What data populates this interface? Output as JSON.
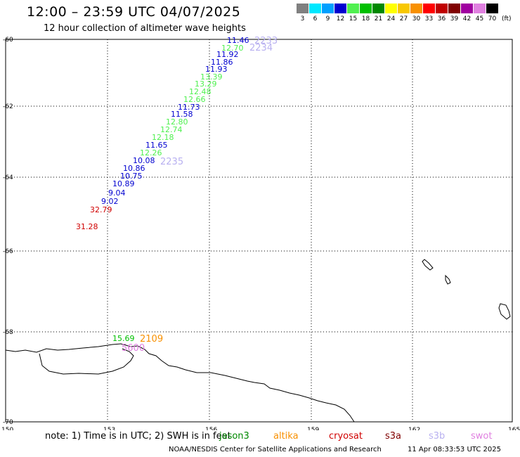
{
  "header": {
    "title": "12:00 – 23:59 UTC 04/07/2025",
    "subtitle": "12 hour collection of altimeter wave heights"
  },
  "colorbar": {
    "units": "(ft)",
    "bins": [
      {
        "label": "3",
        "color": "#808080"
      },
      {
        "label": "6",
        "color": "#00e8ff"
      },
      {
        "label": "9",
        "color": "#00a0ff"
      },
      {
        "label": "12",
        "color": "#0000d0"
      },
      {
        "label": "15",
        "color": "#50f050"
      },
      {
        "label": "18",
        "color": "#00c000"
      },
      {
        "label": "21",
        "color": "#008800"
      },
      {
        "label": "24",
        "color": "#ffff00"
      },
      {
        "label": "27",
        "color": "#f8c800"
      },
      {
        "label": "30",
        "color": "#f89000"
      },
      {
        "label": "33",
        "color": "#ff0000"
      },
      {
        "label": "36",
        "color": "#c00000"
      },
      {
        "label": "39",
        "color": "#800000"
      },
      {
        "label": "42",
        "color": "#a000a0"
      },
      {
        "label": "45",
        "color": "#e080e0"
      },
      {
        "label": "70",
        "color": "#000000"
      }
    ]
  },
  "map": {
    "lon_range": [
      150,
      165
    ],
    "lat_range": [
      -60,
      -70
    ],
    "lon_ticks": [
      "150",
      "153",
      "156",
      "159",
      "162",
      "165"
    ],
    "lat_ticks": [
      "-60",
      "-62",
      "-64",
      "-66",
      "-68",
      "-70"
    ],
    "track_labels": [
      "2233",
      "2234",
      "2235",
      "2109",
      "5600"
    ],
    "observations": [
      {
        "value": "11.46",
        "color": "#0000d0"
      },
      {
        "value": "12.70",
        "color": "#50f050"
      },
      {
        "value": "11.92",
        "color": "#0000d0"
      },
      {
        "value": "11.86",
        "color": "#0000d0"
      },
      {
        "value": "11.93",
        "color": "#0000d0"
      },
      {
        "value": "13.39",
        "color": "#50f050"
      },
      {
        "value": "13.29",
        "color": "#50f050"
      },
      {
        "value": "12.48",
        "color": "#50f050"
      },
      {
        "value": "12.66",
        "color": "#50f050"
      },
      {
        "value": "11.73",
        "color": "#0000d0"
      },
      {
        "value": "11.58",
        "color": "#0000d0"
      },
      {
        "value": "12.80",
        "color": "#50f050"
      },
      {
        "value": "12.74",
        "color": "#50f050"
      },
      {
        "value": "12.18",
        "color": "#50f050"
      },
      {
        "value": "11.65",
        "color": "#0000d0"
      },
      {
        "value": "12.26",
        "color": "#50f050"
      },
      {
        "value": "10.08",
        "color": "#0000d0"
      },
      {
        "value": "10.86",
        "color": "#0000d0"
      },
      {
        "value": "10.75",
        "color": "#0000d0"
      },
      {
        "value": "10.89",
        "color": "#0000d0"
      },
      {
        "value": "9.04",
        "color": "#0000d0"
      },
      {
        "value": "9.02",
        "color": "#0000d0"
      },
      {
        "value": "32.79",
        "color": "#d00000"
      },
      {
        "value": "31.28",
        "color": "#d00000"
      },
      {
        "value": "15.69",
        "color": "#00c000"
      }
    ]
  },
  "note": {
    "text": "note: 1) Time is in UTC; 2) SWH is in feet",
    "satellites": [
      {
        "name": "jason3",
        "color": "#008800"
      },
      {
        "name": "altika",
        "color": "#f89000"
      },
      {
        "name": "cryosat",
        "color": "#d00000"
      },
      {
        "name": "s3a",
        "color": "#800000"
      },
      {
        "name": "s3b",
        "color": "#b8b0f0"
      },
      {
        "name": "swot",
        "color": "#e080e0"
      }
    ]
  },
  "footer": {
    "credit": "NOAA/NESDIS Center for Satellite Applications and Research",
    "timestamp": "11 Apr 08:33:53 UTC 2025"
  }
}
